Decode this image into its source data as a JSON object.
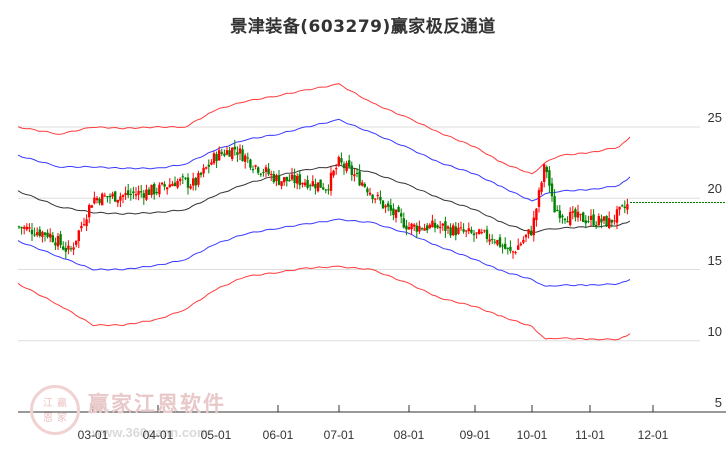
{
  "title": "景津装备(603279)赢家极反通道",
  "watermark": {
    "brand": "赢家江恩软件",
    "url": "www.360gann.com",
    "logo_chars": [
      "江",
      "赢",
      "恩",
      "家"
    ]
  },
  "colors": {
    "outer_band": "#ff3b3b",
    "inner_band": "#3a3aff",
    "mid_line": "#333333",
    "candle_up": "#ff0000",
    "candle_down": "#008000",
    "last_price_line": "#008000",
    "grid": "#dddddd"
  },
  "axes": {
    "y_ticks": [
      "25",
      "20",
      "15",
      "10",
      "5"
    ],
    "x_ticks": [
      "03-01",
      "04-01",
      "05-01",
      "06-01",
      "07-01",
      "08-01",
      "09-01",
      "10-01",
      "11-01",
      "12-01"
    ]
  },
  "chart_data": {
    "type": "candlestick_with_channels",
    "title": "景津装备(603279)赢家极反通道",
    "xlabel": "",
    "ylabel": "",
    "ylim": [
      5,
      27.5
    ],
    "y_ticks": [
      5,
      10,
      15,
      20,
      25
    ],
    "x_ticks": [
      "03-01",
      "04-01",
      "05-01",
      "06-01",
      "07-01",
      "08-01",
      "09-01",
      "10-01",
      "11-01",
      "12-01"
    ],
    "grid": true,
    "last_price": 19.7,
    "series": [
      {
        "name": "upper_outer",
        "color": "red",
        "x": [
          "02-01",
          "02-15",
          "03-01",
          "03-15",
          "04-01",
          "04-15",
          "05-01",
          "05-15",
          "06-01",
          "06-15",
          "07-01",
          "07-15",
          "08-01",
          "08-15",
          "09-01",
          "09-15",
          "10-01",
          "10-08",
          "10-15",
          "11-01",
          "11-15",
          "11-25"
        ],
        "values": [
          25.0,
          24.5,
          25.0,
          24.9,
          25.0,
          25.0,
          26.2,
          26.8,
          27.2,
          27.6,
          28.0,
          26.7,
          25.6,
          24.6,
          23.6,
          22.5,
          21.7,
          22.5,
          23.0,
          23.2,
          23.6,
          24.3
        ]
      },
      {
        "name": "upper_inner",
        "color": "blue",
        "x": [
          "02-01",
          "02-15",
          "03-01",
          "03-15",
          "04-01",
          "04-15",
          "05-01",
          "05-15",
          "06-01",
          "06-15",
          "07-01",
          "07-15",
          "08-01",
          "08-15",
          "09-01",
          "09-15",
          "10-01",
          "10-08",
          "10-15",
          "11-01",
          "11-15",
          "11-25"
        ],
        "values": [
          23.0,
          22.2,
          22.2,
          22.1,
          22.1,
          22.4,
          23.4,
          24.1,
          24.5,
          25.0,
          25.5,
          24.6,
          23.5,
          22.5,
          21.7,
          20.8,
          19.8,
          20.3,
          20.5,
          20.6,
          20.9,
          21.5
        ]
      },
      {
        "name": "middle",
        "color": "black",
        "x": [
          "02-01",
          "02-15",
          "03-01",
          "03-15",
          "04-01",
          "04-15",
          "05-01",
          "05-15",
          "06-01",
          "06-15",
          "07-01",
          "07-15",
          "08-01",
          "08-15",
          "09-01",
          "09-15",
          "10-01",
          "10-08",
          "10-15",
          "11-01",
          "11-15",
          "11-25"
        ],
        "values": [
          20.5,
          19.4,
          19.0,
          18.9,
          19.0,
          19.2,
          20.2,
          21.0,
          21.6,
          22.0,
          22.3,
          21.8,
          20.9,
          20.0,
          19.2,
          18.3,
          17.6,
          17.8,
          17.9,
          18.0,
          18.1,
          18.4
        ]
      },
      {
        "name": "lower_inner",
        "color": "blue",
        "x": [
          "02-01",
          "02-15",
          "03-01",
          "03-15",
          "04-01",
          "04-15",
          "05-01",
          "05-15",
          "06-01",
          "06-15",
          "07-01",
          "07-15",
          "08-01",
          "08-15",
          "09-01",
          "09-15",
          "10-01",
          "10-08",
          "10-15",
          "11-01",
          "11-15",
          "11-25"
        ],
        "values": [
          17.0,
          15.9,
          15.0,
          15.0,
          15.3,
          15.7,
          16.8,
          17.5,
          17.9,
          18.2,
          18.5,
          18.3,
          17.5,
          16.6,
          15.7,
          14.9,
          14.3,
          13.8,
          13.9,
          13.9,
          14.0,
          14.3
        ]
      },
      {
        "name": "lower_outer",
        "color": "red",
        "x": [
          "02-01",
          "02-15",
          "03-01",
          "03-15",
          "04-01",
          "04-15",
          "05-01",
          "05-15",
          "06-01",
          "06-15",
          "07-01",
          "07-15",
          "08-01",
          "08-15",
          "09-01",
          "09-15",
          "10-01",
          "10-08",
          "10-15",
          "11-01",
          "11-15",
          "11-25"
        ],
        "values": [
          14.0,
          12.5,
          11.1,
          11.1,
          11.5,
          12.2,
          13.6,
          14.5,
          14.8,
          15.1,
          15.2,
          15.0,
          14.0,
          13.0,
          12.4,
          11.7,
          11.0,
          10.1,
          10.2,
          10.1,
          10.1,
          10.5
        ]
      },
      {
        "name": "price_close",
        "color": "red/green candles",
        "x": [
          "02-01",
          "02-10",
          "02-20",
          "03-01",
          "03-15",
          "04-01",
          "04-10",
          "04-20",
          "05-01",
          "05-10",
          "05-20",
          "06-01",
          "06-15",
          "06-25",
          "07-01",
          "07-10",
          "07-20",
          "08-01",
          "08-15",
          "09-01",
          "09-10",
          "09-20",
          "10-01",
          "10-08",
          "10-12",
          "10-20",
          "11-01",
          "11-10",
          "11-20",
          "11-25"
        ],
        "values": [
          18.0,
          17.5,
          16.2,
          20.0,
          20.2,
          20.6,
          21.2,
          21.0,
          23.0,
          23.5,
          22.3,
          21.3,
          21.2,
          20.8,
          22.5,
          21.3,
          19.5,
          18.0,
          18.0,
          17.4,
          17.3,
          16.1,
          17.8,
          22.5,
          19.3,
          18.7,
          18.5,
          18.3,
          19.5,
          19.7
        ]
      }
    ]
  }
}
